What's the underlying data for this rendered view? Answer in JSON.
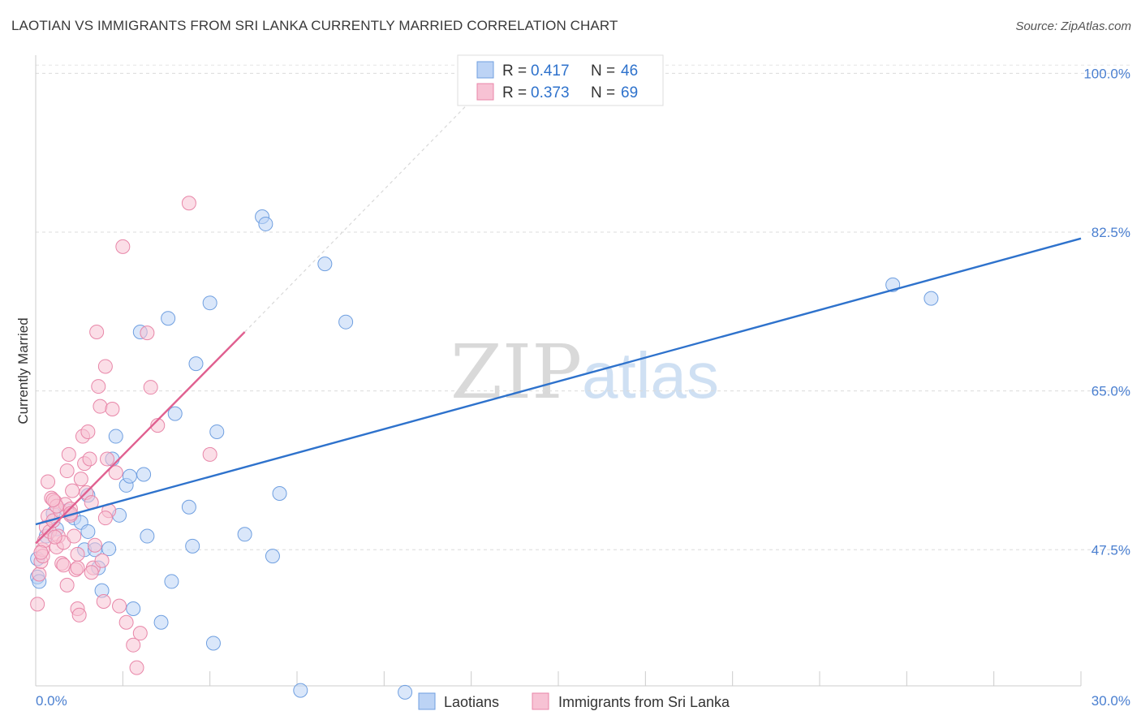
{
  "header": {
    "title": "LAOTIAN VS IMMIGRANTS FROM SRI LANKA CURRENTLY MARRIED CORRELATION CHART",
    "source": "Source: ZipAtlas.com"
  },
  "watermark": {
    "part1": "ZIP",
    "part2": "atlas"
  },
  "chart_data": {
    "type": "scatter",
    "title": "LAOTIAN VS IMMIGRANTS FROM SRI LANKA CURRENTLY MARRIED CORRELATION CHART",
    "xlabel": "",
    "ylabel": "Currently Married",
    "xlim": [
      0,
      30
    ],
    "ylim": [
      32.5,
      102
    ],
    "x_tick_labels": [
      "0.0%",
      "30.0%"
    ],
    "y_ticks": [
      47.5,
      65.0,
      82.5,
      100.0
    ],
    "y_tick_labels": [
      "47.5%",
      "65.0%",
      "82.5%",
      "100.0%"
    ],
    "legend_stats": [
      {
        "r_label": "R =",
        "r_value": "0.417",
        "n_label": "N =",
        "n_value": "46"
      },
      {
        "r_label": "R =",
        "r_value": "0.373",
        "n_label": "N =",
        "n_value": "69"
      }
    ],
    "series": [
      {
        "name": "Laotians",
        "color": "#6f9fe0",
        "fill": "#bcd3f5",
        "line_color": "#2e72cc",
        "trend": {
          "x0": 0,
          "y0": 50.3,
          "x1": 30,
          "y1": 81.8
        },
        "points": [
          [
            0.05,
            46.5
          ],
          [
            0.05,
            44.5
          ],
          [
            0.3,
            49.0
          ],
          [
            0.5,
            51.5
          ],
          [
            0.6,
            49.8
          ],
          [
            0.9,
            51.8
          ],
          [
            1.1,
            51.0
          ],
          [
            1.3,
            50.5
          ],
          [
            1.4,
            47.5
          ],
          [
            1.5,
            49.5
          ],
          [
            1.5,
            53.5
          ],
          [
            1.7,
            47.5
          ],
          [
            1.8,
            45.5
          ],
          [
            1.9,
            43.0
          ],
          [
            2.1,
            47.6
          ],
          [
            2.2,
            57.5
          ],
          [
            2.3,
            60.0
          ],
          [
            2.4,
            51.3
          ],
          [
            2.6,
            54.6
          ],
          [
            2.7,
            55.6
          ],
          [
            2.8,
            41.0
          ],
          [
            3.0,
            71.5
          ],
          [
            3.1,
            55.8
          ],
          [
            3.2,
            49.0
          ],
          [
            3.6,
            39.5
          ],
          [
            3.8,
            73.0
          ],
          [
            3.9,
            44.0
          ],
          [
            4.0,
            62.5
          ],
          [
            4.4,
            52.2
          ],
          [
            4.5,
            47.9
          ],
          [
            4.6,
            68.0
          ],
          [
            5.0,
            74.7
          ],
          [
            5.1,
            37.2
          ],
          [
            5.2,
            60.5
          ],
          [
            6.0,
            49.2
          ],
          [
            6.5,
            84.2
          ],
          [
            6.6,
            83.4
          ],
          [
            6.8,
            46.8
          ],
          [
            7.0,
            53.7
          ],
          [
            7.6,
            32.0
          ],
          [
            8.3,
            79.0
          ],
          [
            8.9,
            72.6
          ],
          [
            10.6,
            31.8
          ],
          [
            24.6,
            76.7
          ],
          [
            25.7,
            75.2
          ],
          [
            0.1,
            44.0
          ]
        ]
      },
      {
        "name": "Immigrants from Sri Lanka",
        "color": "#e886a8",
        "fill": "#f7c2d4",
        "line_color": "#e06090",
        "trend": {
          "x0": 0,
          "y0": 48.2,
          "x1": 6.0,
          "y1": 71.5
        },
        "trend_extension": {
          "x0": 6.0,
          "y0": 71.5,
          "x1": 12.5,
          "y1": 97.0
        },
        "points": [
          [
            0.05,
            41.5
          ],
          [
            0.1,
            44.8
          ],
          [
            0.15,
            46.2
          ],
          [
            0.2,
            47.5
          ],
          [
            0.25,
            48.5
          ],
          [
            0.3,
            50.0
          ],
          [
            0.35,
            51.2
          ],
          [
            0.4,
            49.5
          ],
          [
            0.45,
            53.2
          ],
          [
            0.5,
            50.7
          ],
          [
            0.55,
            52.8
          ],
          [
            0.6,
            47.8
          ],
          [
            0.65,
            49.0
          ],
          [
            0.7,
            51.8
          ],
          [
            0.75,
            46.0
          ],
          [
            0.8,
            48.3
          ],
          [
            0.85,
            52.5
          ],
          [
            0.9,
            56.2
          ],
          [
            0.95,
            58.0
          ],
          [
            1.0,
            52.0
          ],
          [
            1.05,
            54.0
          ],
          [
            1.1,
            49.0
          ],
          [
            1.15,
            45.3
          ],
          [
            1.2,
            41.0
          ],
          [
            1.25,
            40.3
          ],
          [
            1.3,
            55.3
          ],
          [
            1.35,
            60.0
          ],
          [
            1.4,
            57.0
          ],
          [
            1.45,
            53.8
          ],
          [
            1.5,
            60.5
          ],
          [
            1.55,
            57.5
          ],
          [
            1.6,
            52.7
          ],
          [
            1.65,
            45.5
          ],
          [
            1.7,
            48.0
          ],
          [
            1.75,
            71.5
          ],
          [
            1.8,
            65.5
          ],
          [
            1.85,
            63.3
          ],
          [
            1.9,
            46.3
          ],
          [
            1.95,
            41.8
          ],
          [
            2.0,
            67.7
          ],
          [
            2.05,
            57.5
          ],
          [
            2.1,
            51.8
          ],
          [
            2.2,
            63.0
          ],
          [
            2.3,
            56.0
          ],
          [
            2.4,
            41.3
          ],
          [
            2.5,
            80.9
          ],
          [
            2.6,
            39.5
          ],
          [
            2.8,
            37.0
          ],
          [
            2.9,
            34.5
          ],
          [
            3.0,
            38.3
          ],
          [
            3.2,
            71.4
          ],
          [
            3.3,
            65.4
          ],
          [
            3.5,
            61.2
          ],
          [
            4.4,
            85.7
          ],
          [
            5.0,
            58.0
          ],
          [
            0.2,
            46.8
          ],
          [
            0.6,
            52.3
          ],
          [
            1.0,
            51.3
          ],
          [
            1.2,
            45.5
          ],
          [
            0.35,
            55.0
          ],
          [
            0.55,
            48.9
          ],
          [
            1.0,
            51.5
          ],
          [
            0.8,
            45.8
          ],
          [
            0.15,
            47.2
          ],
          [
            0.5,
            53.0
          ],
          [
            1.2,
            47.0
          ],
          [
            0.9,
            43.6
          ],
          [
            1.6,
            45.0
          ],
          [
            2.0,
            51.0
          ]
        ]
      }
    ]
  }
}
